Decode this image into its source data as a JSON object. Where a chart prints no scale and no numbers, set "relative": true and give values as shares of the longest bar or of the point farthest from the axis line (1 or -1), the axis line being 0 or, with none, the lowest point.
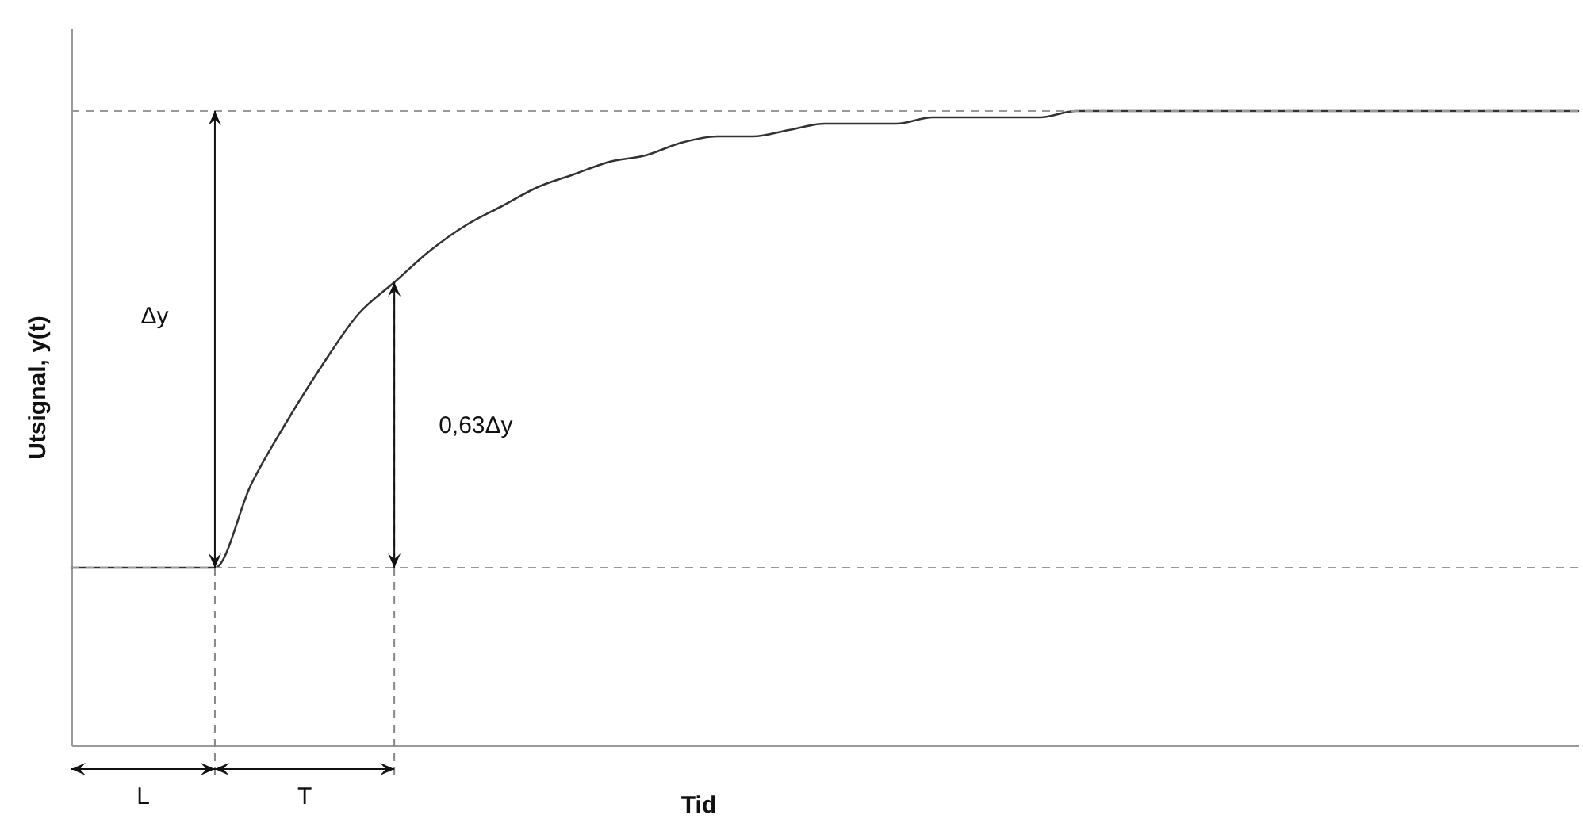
{
  "chart_data": {
    "type": "line",
    "relative": true,
    "xlabel": "Tid",
    "ylabel": "Utsignal, y(t)",
    "tick_labels": false,
    "categories": [
      null,
      null,
      null,
      null,
      null,
      null,
      null,
      null,
      null,
      null,
      null,
      null,
      null,
      null,
      null,
      null,
      null,
      null,
      null,
      null,
      null,
      null,
      null,
      null,
      null,
      null,
      null,
      null,
      null,
      null,
      null,
      null,
      null,
      null,
      null,
      null,
      null,
      null,
      null,
      null,
      null,
      null,
      null
    ],
    "series": [
      {
        "color": "#333333",
        "values": [
          0.28,
          0.28,
          0.28,
          0.28,
          0.28,
          0.41,
          0.51,
          0.6,
          0.68,
          0.73,
          0.78,
          0.82,
          0.85,
          0.88,
          0.9,
          0.92,
          0.93,
          0.95,
          0.96,
          0.96,
          0.97,
          0.98,
          0.98,
          0.98,
          0.99,
          0.99,
          0.99,
          0.99,
          1,
          1,
          1,
          1,
          1,
          1,
          1,
          1,
          1,
          1,
          1,
          1,
          1,
          1,
          1
        ]
      }
    ],
    "ref_lines": [
      {
        "axis": "y",
        "value": 0.28,
        "color": "#999999",
        "line_style": "dashed"
      },
      {
        "axis": "y",
        "value": 1,
        "color": "#999999",
        "line_style": "dashed"
      }
    ],
    "annotations": [
      "Δy",
      "0,63Δy",
      "L",
      "T"
    ]
  }
}
